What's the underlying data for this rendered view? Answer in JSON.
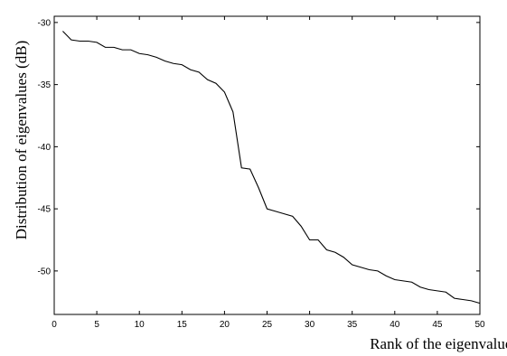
{
  "chart_data": {
    "type": "line",
    "title": "",
    "xlabel": "Rank of the eigenvalues",
    "ylabel": "Distribution of eigenvalues (dB)",
    "xlim": [
      0,
      50
    ],
    "ylim": [
      -53.5,
      -29.5
    ],
    "xticks": [
      0,
      5,
      10,
      15,
      20,
      25,
      30,
      35,
      40,
      45,
      50
    ],
    "yticks": [
      -30,
      -35,
      -40,
      -45,
      -50
    ],
    "grid": false,
    "legend": "none",
    "line_color": "#000000",
    "series": [
      {
        "x": [
          1,
          2,
          3,
          4,
          5,
          6,
          7,
          8,
          9,
          10,
          11,
          12,
          13,
          14,
          15,
          16,
          17,
          18,
          19,
          20,
          21,
          22,
          23,
          24,
          25,
          26,
          27,
          28,
          29,
          30,
          31,
          32,
          33,
          34,
          35,
          36,
          37,
          38,
          39,
          40,
          41,
          42,
          43,
          44,
          45,
          46,
          47,
          48,
          49,
          50
        ],
        "values": [
          -30.7,
          -31.4,
          -31.5,
          -31.5,
          -31.6,
          -32.0,
          -32.0,
          -32.2,
          -32.2,
          -32.5,
          -32.6,
          -32.8,
          -33.1,
          -33.3,
          -33.4,
          -33.8,
          -34.0,
          -34.6,
          -34.9,
          -35.6,
          -37.2,
          -41.7,
          -41.8,
          -43.3,
          -45.0,
          -45.2,
          -45.4,
          -45.6,
          -46.4,
          -47.5,
          -47.5,
          -48.3,
          -48.5,
          -48.9,
          -49.5,
          -49.7,
          -49.9,
          -50.0,
          -50.4,
          -50.7,
          -50.8,
          -50.9,
          -51.3,
          -51.5,
          -51.6,
          -51.7,
          -52.2,
          -52.3,
          -52.4,
          -52.6
        ]
      }
    ]
  }
}
